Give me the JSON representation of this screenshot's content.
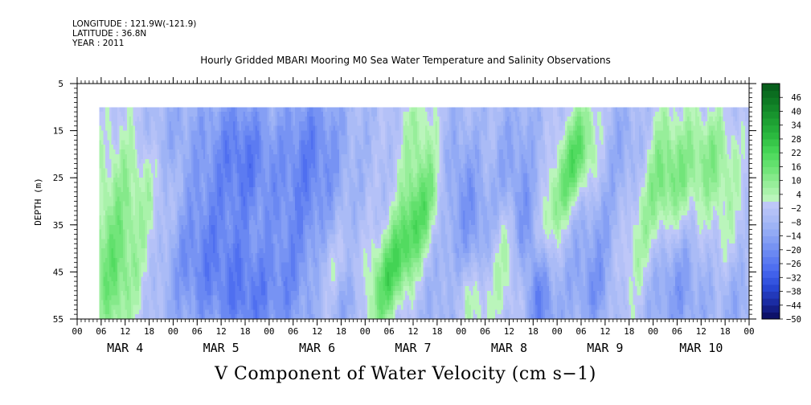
{
  "header": {
    "longitude": "LONGITUDE : 121.9W(-121.9)",
    "latitude": "LATITUDE : 36.8N",
    "year": "YEAR : 2011"
  },
  "chart_data": {
    "type": "heatmap",
    "title": "Hourly Gridded MBARI Mooring M0 Sea Water Temperature and Salinity Observations",
    "subtitle": "V Component of Water Velocity (cm s−1)",
    "ylabel": "DEPTH (m)",
    "y_ticks": [
      5,
      15,
      25,
      35,
      45,
      55
    ],
    "ylim": [
      55,
      5
    ],
    "data_depth_range": [
      10,
      55
    ],
    "x_hour_ticks": [
      "00",
      "06",
      "12",
      "18",
      "00",
      "06",
      "12",
      "18",
      "00",
      "06",
      "12",
      "18",
      "00",
      "06",
      "12",
      "18",
      "00",
      "06",
      "12",
      "18",
      "00",
      "06",
      "12",
      "18",
      "00",
      "06",
      "12",
      "18",
      "00"
    ],
    "x_day_labels": [
      {
        "label": "MAR 4",
        "day": 0
      },
      {
        "label": "MAR 5",
        "day": 1
      },
      {
        "label": "MAR 6",
        "day": 2
      },
      {
        "label": "MAR 7",
        "day": 3
      },
      {
        "label": "MAR 8",
        "day": 4
      },
      {
        "label": "MAR 9",
        "day": 5
      },
      {
        "label": "MAR 10",
        "day": 6
      }
    ],
    "x_range_hours": [
      0,
      168
    ],
    "data_start_hour": 5.5,
    "colorbar": {
      "labels": [
        "46",
        "40",
        "34",
        "28",
        "22",
        "16",
        "10",
        "4",
        "-2",
        "-8",
        "-14",
        "-20",
        "-26",
        "-32",
        "-38",
        "-44",
        "-50"
      ],
      "min": -50,
      "max": 52,
      "step": 3,
      "colors_low": [
        "#0a0a5a",
        "#1a2aa0",
        "#2a4ad8",
        "#4a6af0",
        "#6a88f2",
        "#8aa4f4",
        "#a8baf6",
        "#c0c8f8"
      ],
      "colors_high": [
        "#c8f8c8",
        "#9ef0a0",
        "#70e478",
        "#48d858",
        "#2ab83e",
        "#1a9a30",
        "#0e7a24",
        "#06581a"
      ]
    },
    "field_note": "Alternating bands of negative (blue/lavender, about -20 to -8) and positive (green, about 4 to 22) along-shore velocity, tilted in time, with strongest blue near Mar 5 12-18h, Mar 6 15-20h and Mar 8 15-18h and strongest green near Mar 7 06-12h and Mar 9 06h, Mar 10 18h."
  }
}
